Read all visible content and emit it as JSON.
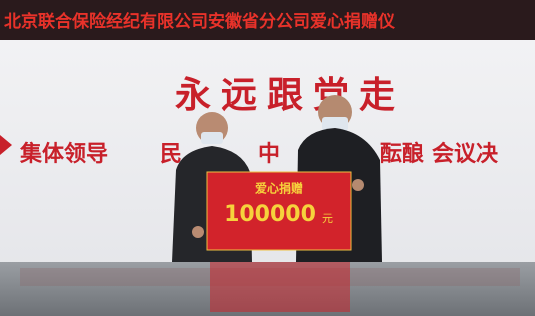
{
  "banner": {
    "text": "北京联合保险经纪有限公司安徽省分公司爱心捐赠仪"
  },
  "slogan": "永远跟党走",
  "wall_motto": [
    "集体领导",
    "民",
    "中",
    "酝酿",
    "会议决"
  ],
  "donation_board": {
    "title": "爱心捐赠",
    "amount": 100000,
    "unit": "元"
  }
}
